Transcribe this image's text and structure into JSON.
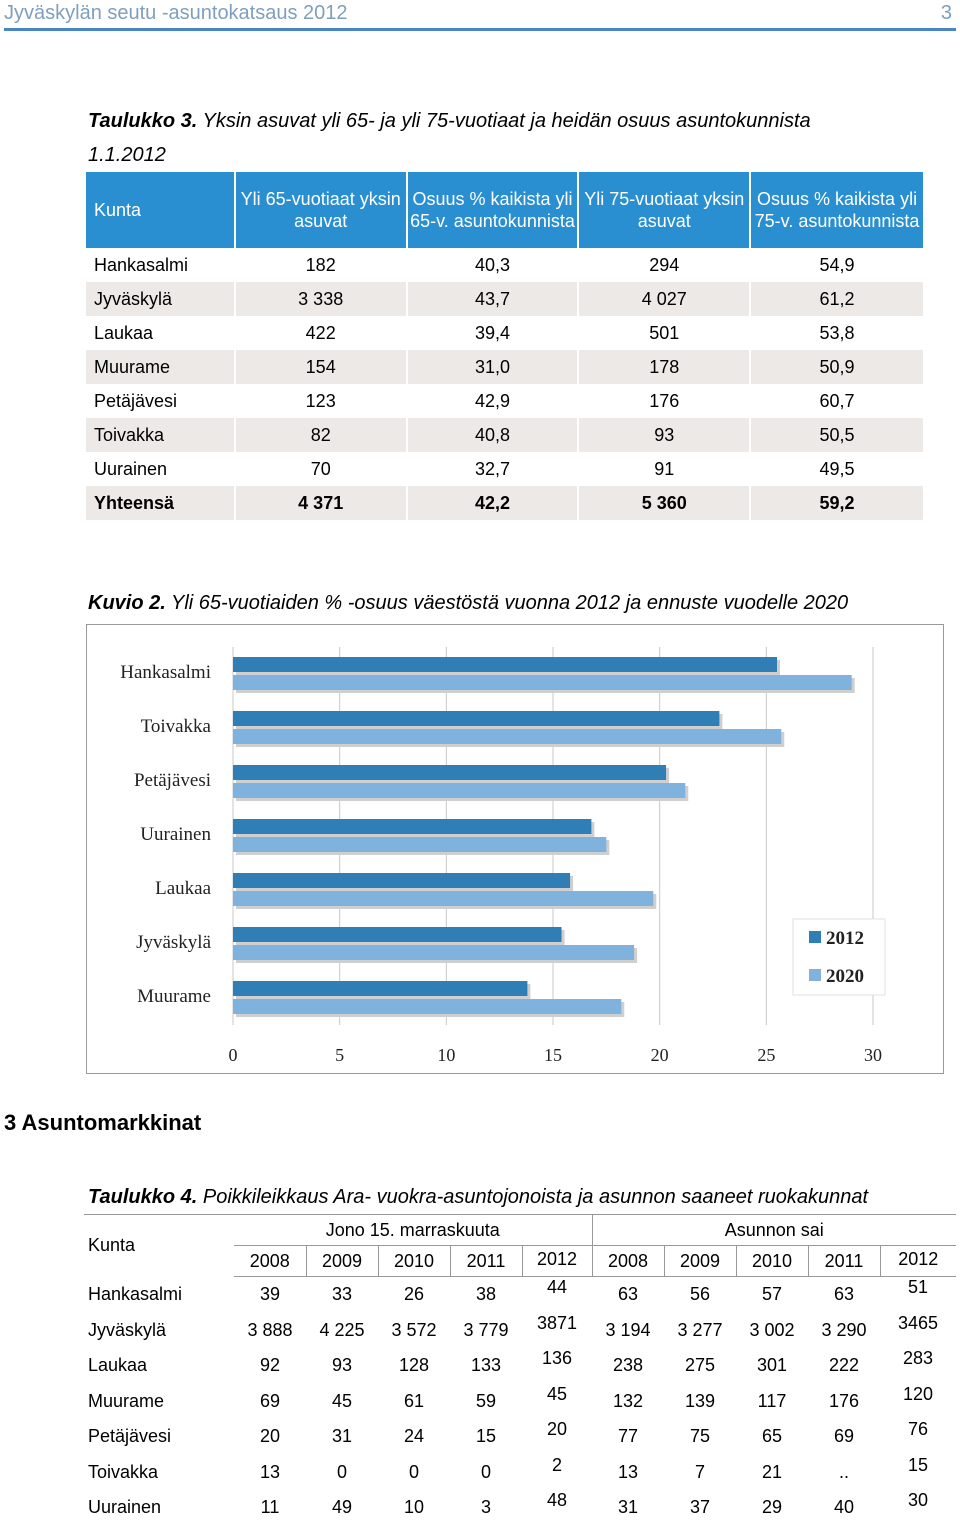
{
  "header": {
    "title": "Jyväskylän seutu -asuntokatsaus 2012",
    "page_number": "3"
  },
  "table3": {
    "caption_label": "Taulukko 3.",
    "caption_text": " Yksin asuvat yli 65- ja yli 75-vuotiaat ja heidän osuus asuntokunnista",
    "caption_text2": "1.1.2012",
    "headers": [
      "Kunta",
      "Yli 65-vuotiaat yksin asuvat",
      "Osuus % kaikista  yli 65-v. asuntokunnista",
      "Yli 75-vuotiaat yksin asuvat",
      "Osuus % kaikista  yli 75-v. asuntokunnista"
    ],
    "rows": [
      [
        "Hankasalmi",
        "182",
        "40,3",
        "294",
        "54,9"
      ],
      [
        "Jyväskylä",
        "3 338",
        "43,7",
        "4 027",
        "61,2"
      ],
      [
        "Laukaa",
        "422",
        "39,4",
        "501",
        "53,8"
      ],
      [
        "Muurame",
        "154",
        "31,0",
        "178",
        "50,9"
      ],
      [
        "Petäjävesi",
        "123",
        "42,9",
        "176",
        "60,7"
      ],
      [
        "Toivakka",
        "82",
        "40,8",
        "93",
        "50,5"
      ],
      [
        "Uurainen",
        "70",
        "32,7",
        "91",
        "49,5"
      ]
    ],
    "total": [
      "Yhteensä",
      "4 371",
      "42,2",
      "5 360",
      "59,2"
    ]
  },
  "figure2": {
    "caption_label": "Kuvio 2.",
    "caption_text": " Yli 65-vuotiaiden % -osuus väestöstä vuonna 2012 ja ennuste vuodelle 2020"
  },
  "chart_data": {
    "type": "bar",
    "orientation": "horizontal",
    "categories": [
      "Hankasalmi",
      "Toivakka",
      "Petäjävesi",
      "Uurainen",
      "Laukaa",
      "Jyväskylä",
      "Muurame"
    ],
    "series": [
      {
        "name": "2012",
        "values": [
          25.5,
          22.8,
          20.3,
          16.8,
          15.8,
          15.4,
          13.8
        ],
        "color": "#2f7fb6"
      },
      {
        "name": "2020",
        "values": [
          29.0,
          25.7,
          21.2,
          17.5,
          19.7,
          18.8,
          18.2
        ],
        "color": "#7fb2dc"
      }
    ],
    "xlim": [
      0,
      30
    ],
    "xticks": [
      "0",
      "5",
      "10",
      "15",
      "20",
      "25",
      "30"
    ],
    "grid": true,
    "legend_position": "right"
  },
  "section": {
    "title": "3  Asuntomarkkinat"
  },
  "table4": {
    "caption_label": "Taulukko 4.",
    "caption_text": " Poikkileikkaus Ara- vuokra-asuntojonoista ja asunnon saaneet ruokakunnat",
    "kunta": "Kunta",
    "group1": "Jono 15. marraskuuta",
    "group2": "Asunnon sai",
    "years": [
      "2008",
      "2009",
      "2010",
      "2011",
      "2012",
      "2008",
      "2009",
      "2010",
      "2011",
      "2012"
    ],
    "rows": [
      [
        "Hankasalmi",
        "39",
        "33",
        "26",
        "38",
        "44",
        "63",
        "56",
        "57",
        "63",
        "51"
      ],
      [
        "Jyväskylä",
        "3 888",
        "4 225",
        "3 572",
        "3 779",
        "3871",
        "3 194",
        "3 277",
        "3 002",
        "3 290",
        "3465"
      ],
      [
        "Laukaa",
        "92",
        "93",
        "128",
        "133",
        "136",
        "238",
        "275",
        "301",
        "222",
        "283"
      ],
      [
        "Muurame",
        "69",
        "45",
        "61",
        "59",
        "45",
        "132",
        "139",
        "117",
        "176",
        "120"
      ],
      [
        "Petäjävesi",
        "20",
        "31",
        "24",
        "15",
        "20",
        "77",
        "75",
        "65",
        "69",
        "76"
      ],
      [
        "Toivakka",
        "13",
        "0",
        "0",
        "0",
        "2",
        "13",
        "7",
        "21",
        "..",
        "15"
      ],
      [
        "Uurainen",
        "11",
        "49",
        "10",
        "3",
        "48",
        "31",
        "37",
        "29",
        "40",
        "30"
      ]
    ]
  }
}
